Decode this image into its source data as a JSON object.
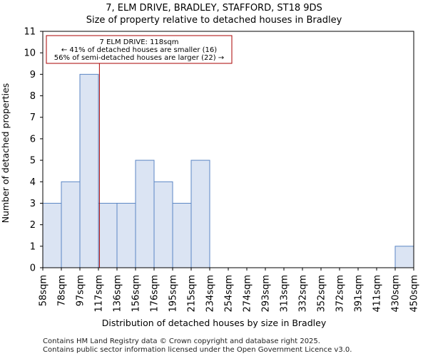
{
  "chart_data": {
    "type": "bar",
    "title": "7, ELM DRIVE, BRADLEY, STAFFORD, ST18 9DS",
    "subtitle": "Size of property relative to detached houses in Bradley",
    "xlabel": "Distribution of detached houses by size in Bradley",
    "ylabel": "Number of detached properties",
    "bin_edges": [
      58,
      78,
      97,
      117,
      136,
      156,
      176,
      195,
      215,
      234,
      254,
      274,
      293,
      313,
      332,
      352,
      372,
      391,
      411,
      430,
      450
    ],
    "tick_labels": [
      "58sqm",
      "78sqm",
      "97sqm",
      "117sqm",
      "136sqm",
      "156sqm",
      "176sqm",
      "195sqm",
      "215sqm",
      "234sqm",
      "254sqm",
      "274sqm",
      "293sqm",
      "313sqm",
      "332sqm",
      "352sqm",
      "372sqm",
      "391sqm",
      "411sqm",
      "430sqm",
      "450sqm"
    ],
    "values": [
      3,
      4,
      9,
      3,
      3,
      5,
      4,
      3,
      5,
      0,
      0,
      0,
      0,
      0,
      0,
      0,
      0,
      0,
      0,
      1
    ],
    "ylim": [
      0,
      11
    ],
    "yticks": [
      0,
      1,
      2,
      3,
      4,
      5,
      6,
      7,
      8,
      9,
      10,
      11
    ],
    "grid": false,
    "colors": {
      "bar_fill": "#dbe4f3",
      "bar_edge": "#5b86c4",
      "marker_line": "#aa0000",
      "annotation_border": "#aa0000"
    },
    "marker": {
      "value": 118
    },
    "annotation": {
      "line1": "7 ELM DRIVE: 118sqm",
      "line2": "← 41% of detached houses are smaller (16)",
      "line3": "56% of semi-detached houses are larger (22) →"
    }
  },
  "footer": {
    "line1": "Contains HM Land Registry data © Crown copyright and database right 2025.",
    "line2": "Contains public sector information licensed under the Open Government Licence v3.0."
  }
}
